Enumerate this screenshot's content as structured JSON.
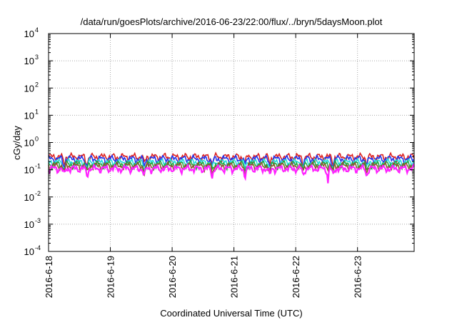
{
  "chart_data": {
    "type": "line",
    "title": "/data/run/goesPlots/archive/2016-06-23/22:00/flux/../bryn/5daysMoon.plot",
    "xlabel": "Coordinated Universal Time (UTC)",
    "ylabel": "cGy/day",
    "y_scale": "log",
    "ylim": [
      0.0001,
      10000
    ],
    "xlim": [
      "2016-06-18 00:00",
      "2016-06-23 22:00"
    ],
    "y_ticks": [
      {
        "value": 0.0001,
        "mant": "10",
        "exp": "-4"
      },
      {
        "value": 0.001,
        "mant": "10",
        "exp": "-3"
      },
      {
        "value": 0.01,
        "mant": "10",
        "exp": "-2"
      },
      {
        "value": 0.1,
        "mant": "10",
        "exp": "-1"
      },
      {
        "value": 1,
        "mant": "10",
        "exp": "0"
      },
      {
        "value": 10,
        "mant": "10",
        "exp": "1"
      },
      {
        "value": 100,
        "mant": "10",
        "exp": "2"
      },
      {
        "value": 1000,
        "mant": "10",
        "exp": "3"
      },
      {
        "value": 10000,
        "mant": "10",
        "exp": "4"
      }
    ],
    "x_ticks": [
      "2016-6-18",
      "2016-6-19",
      "2016-6-20",
      "2016-6-21",
      "2016-6-22",
      "2016-6-23"
    ],
    "grid": true,
    "legend": "none",
    "series": [
      {
        "color": "#dd2222",
        "level": 0.3,
        "dips": [
          0.25,
          0.62,
          1.55,
          2.65,
          3.18,
          3.58,
          4.12,
          4.6,
          5.15
        ]
      },
      {
        "color": "#2233ee",
        "level": 0.25,
        "dips": [
          0.25,
          0.62,
          1.55,
          2.65,
          3.18,
          3.58,
          4.12,
          4.6,
          5.15
        ]
      },
      {
        "color": "#22dddd",
        "level": 0.19,
        "dips": [
          0.25,
          0.62,
          1.55,
          2.65,
          3.18,
          3.58,
          4.12,
          4.6,
          5.15
        ]
      },
      {
        "color": "#22aa44",
        "level": 0.16,
        "dips": [
          0.25,
          0.62,
          1.55,
          2.65,
          3.18,
          3.58,
          4.12,
          4.6,
          5.15
        ]
      },
      {
        "color": "#8a5a2b",
        "level": 0.14,
        "dips": [
          0.25,
          0.62,
          1.55,
          2.65,
          3.18,
          3.58,
          4.12,
          4.6,
          5.15
        ]
      },
      {
        "color": "#ff22ff",
        "level": 0.11,
        "dips": [
          0.25,
          0.62,
          1.55,
          2.65,
          3.18,
          3.58,
          4.12,
          4.6,
          5.15
        ],
        "min_dip": [
          {
            "day": 4.52,
            "value": 0.025
          }
        ]
      }
    ]
  }
}
